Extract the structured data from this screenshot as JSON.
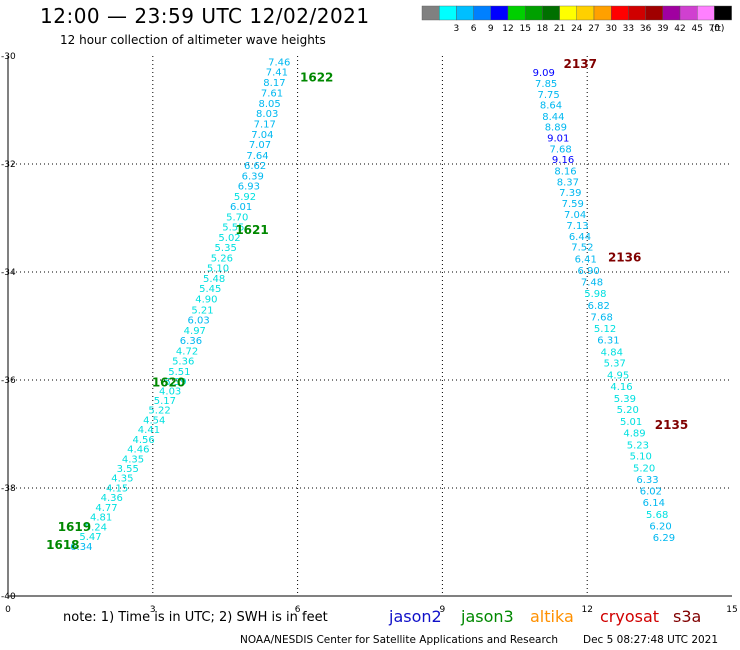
{
  "header": {
    "title": "12:00 — 23:59 UTC 12/02/2021",
    "subtitle": "12 hour collection of altimeter wave heights"
  },
  "note": "note: 1) Time is in UTC; 2) SWH is in feet",
  "footer": {
    "center": "NOAA/NESDIS Center for Satellite Applications and Research",
    "timestamp": "Dec  5 08:27:48 UTC 2021"
  },
  "satellites": [
    {
      "name": "jason2",
      "color": "#1010c8"
    },
    {
      "name": "jason3",
      "color": "#008800"
    },
    {
      "name": "altika",
      "color": "#ff9000"
    },
    {
      "name": "cryosat",
      "color": "#d00000"
    },
    {
      "name": "s3a",
      "color": "#800000"
    }
  ],
  "color_scale": {
    "unit": "(ft)",
    "bins": [
      {
        "label": "",
        "color": "#808080"
      },
      {
        "label": "3",
        "color": "#00ffff"
      },
      {
        "label": "6",
        "color": "#00bfff"
      },
      {
        "label": "9",
        "color": "#0080ff"
      },
      {
        "label": "12",
        "color": "#0000ff"
      },
      {
        "label": "15",
        "color": "#00d000"
      },
      {
        "label": "18",
        "color": "#00a000"
      },
      {
        "label": "21",
        "color": "#007000"
      },
      {
        "label": "24",
        "color": "#ffff00"
      },
      {
        "label": "27",
        "color": "#ffd000"
      },
      {
        "label": "30",
        "color": "#ffa000"
      },
      {
        "label": "33",
        "color": "#ff0000"
      },
      {
        "label": "36",
        "color": "#d00000"
      },
      {
        "label": "39",
        "color": "#a00000"
      },
      {
        "label": "42",
        "color": "#a000a0"
      },
      {
        "label": "45",
        "color": "#d040d0"
      },
      {
        "label": "70",
        "color": "#ff80ff"
      },
      {
        "label": "",
        "color": "#000000"
      }
    ]
  },
  "chart_data": {
    "type": "scatter",
    "xlim": [
      0,
      15
    ],
    "ylim": [
      -40,
      -30
    ],
    "xticks": [
      "0",
      "3",
      "6",
      "9",
      "12",
      "15"
    ],
    "yticks": [
      "-30",
      "-32",
      "-34",
      "-36",
      "-38",
      "-40"
    ],
    "grid": true,
    "tracks": [
      {
        "points": [
          {
            "x": 5.62,
            "y": -30.1,
            "v": "7.46"
          },
          {
            "x": 5.57,
            "y": -30.29,
            "v": "7.41"
          },
          {
            "x": 5.52,
            "y": -30.48,
            "v": "8.17"
          },
          {
            "x": 5.47,
            "y": -30.68,
            "v": "7.61"
          },
          {
            "x": 5.42,
            "y": -30.87,
            "v": "8.05"
          },
          {
            "x": 5.37,
            "y": -31.06,
            "v": "8.03"
          },
          {
            "x": 5.32,
            "y": -31.25,
            "v": "7.17"
          },
          {
            "x": 5.27,
            "y": -31.44,
            "v": "7.04"
          },
          {
            "x": 5.22,
            "y": -31.63,
            "v": "7.07"
          },
          {
            "x": 5.17,
            "y": -31.83,
            "v": "7.64"
          },
          {
            "x": 5.12,
            "y": -32.02,
            "v": "6.62"
          },
          {
            "x": 5.07,
            "y": -32.21,
            "v": "6.39"
          },
          {
            "x": 4.99,
            "y": -32.4,
            "v": "6.93"
          },
          {
            "x": 4.91,
            "y": -32.59,
            "v": "5.92"
          },
          {
            "x": 4.83,
            "y": -32.78,
            "v": "6.01"
          },
          {
            "x": 4.75,
            "y": -32.97,
            "v": "5.70"
          },
          {
            "x": 4.67,
            "y": -33.16,
            "v": "5.55"
          },
          {
            "x": 4.59,
            "y": -33.35,
            "v": "5.02"
          },
          {
            "x": 4.51,
            "y": -33.54,
            "v": "5.35"
          },
          {
            "x": 4.43,
            "y": -33.73,
            "v": "5.26"
          },
          {
            "x": 4.35,
            "y": -33.92,
            "v": "5.10"
          },
          {
            "x": 4.27,
            "y": -34.11,
            "v": "5.48"
          },
          {
            "x": 4.19,
            "y": -34.3,
            "v": "5.45"
          },
          {
            "x": 4.11,
            "y": -34.49,
            "v": "4.90"
          },
          {
            "x": 4.03,
            "y": -34.69,
            "v": "5.21"
          },
          {
            "x": 3.95,
            "y": -34.88,
            "v": "6.03"
          },
          {
            "x": 3.87,
            "y": -35.07,
            "v": "4.97"
          },
          {
            "x": 3.79,
            "y": -35.26,
            "v": "6.36"
          },
          {
            "x": 3.71,
            "y": -35.45,
            "v": "4.72"
          },
          {
            "x": 3.63,
            "y": -35.64,
            "v": "5.36"
          },
          {
            "x": 3.55,
            "y": -35.83,
            "v": "5.51"
          },
          {
            "x": 3.47,
            "y": -36.02,
            "v": "5.39"
          },
          {
            "x": 3.36,
            "y": -36.19,
            "v": "4.03"
          },
          {
            "x": 3.25,
            "y": -36.37,
            "v": "5.17"
          },
          {
            "x": 3.14,
            "y": -36.55,
            "v": "5.22"
          },
          {
            "x": 3.03,
            "y": -36.73,
            "v": "4.54"
          },
          {
            "x": 2.92,
            "y": -36.91,
            "v": "4.41"
          },
          {
            "x": 2.81,
            "y": -37.09,
            "v": "4.56"
          },
          {
            "x": 2.7,
            "y": -37.27,
            "v": "4.46"
          },
          {
            "x": 2.59,
            "y": -37.45,
            "v": "4.35"
          },
          {
            "x": 2.48,
            "y": -37.63,
            "v": "3.55"
          },
          {
            "x": 2.37,
            "y": -37.81,
            "v": "4.35"
          },
          {
            "x": 2.26,
            "y": -37.99,
            "v": "4.15"
          },
          {
            "x": 2.15,
            "y": -38.17,
            "v": "4.36"
          },
          {
            "x": 2.04,
            "y": -38.35,
            "v": "4.77"
          },
          {
            "x": 1.93,
            "y": -38.53,
            "v": "4.81"
          },
          {
            "x": 1.82,
            "y": -38.71,
            "v": "5.24"
          },
          {
            "x": 1.71,
            "y": -38.89,
            "v": "5.47"
          },
          {
            "x": 1.52,
            "y": -39.07,
            "v": "6.34"
          }
        ],
        "pass_labels": [
          {
            "x": 6.05,
            "y": -30.4,
            "text": "1622",
            "sat": "jason3"
          },
          {
            "x": 4.71,
            "y": -33.22,
            "text": "1621",
            "sat": "jason3"
          },
          {
            "x": 2.98,
            "y": -36.05,
            "text": "1620",
            "sat": "jason3"
          },
          {
            "x": 1.03,
            "y": -38.72,
            "text": "1619",
            "sat": "jason3"
          },
          {
            "x": 0.79,
            "y": -39.06,
            "text": "1618",
            "sat": "jason3"
          }
        ]
      },
      {
        "points": [
          {
            "x": 11.1,
            "y": -30.3,
            "v": "9.09"
          },
          {
            "x": 11.15,
            "y": -30.5,
            "v": "7.85"
          },
          {
            "x": 11.2,
            "y": -30.7,
            "v": "7.75"
          },
          {
            "x": 11.25,
            "y": -30.9,
            "v": "8.64"
          },
          {
            "x": 11.3,
            "y": -31.11,
            "v": "8.44"
          },
          {
            "x": 11.35,
            "y": -31.31,
            "v": "8.89"
          },
          {
            "x": 11.4,
            "y": -31.51,
            "v": "9.01"
          },
          {
            "x": 11.45,
            "y": -31.71,
            "v": "7.68"
          },
          {
            "x": 11.5,
            "y": -31.91,
            "v": "9.16"
          },
          {
            "x": 11.55,
            "y": -32.12,
            "v": "8.16"
          },
          {
            "x": 11.6,
            "y": -32.32,
            "v": "8.37"
          },
          {
            "x": 11.65,
            "y": -32.52,
            "v": "7.39"
          },
          {
            "x": 11.7,
            "y": -32.72,
            "v": "7.59"
          },
          {
            "x": 11.75,
            "y": -32.93,
            "v": "7.04"
          },
          {
            "x": 11.8,
            "y": -33.13,
            "v": "7.13"
          },
          {
            "x": 11.85,
            "y": -33.33,
            "v": "6.44"
          },
          {
            "x": 11.9,
            "y": -33.53,
            "v": "7.52"
          },
          {
            "x": 11.97,
            "y": -33.75,
            "v": "6.41"
          },
          {
            "x": 12.03,
            "y": -33.96,
            "v": "6.90"
          },
          {
            "x": 12.1,
            "y": -34.18,
            "v": "7.48"
          },
          {
            "x": 12.17,
            "y": -34.39,
            "v": "5.98"
          },
          {
            "x": 12.24,
            "y": -34.61,
            "v": "6.82"
          },
          {
            "x": 12.3,
            "y": -34.82,
            "v": "7.68"
          },
          {
            "x": 12.37,
            "y": -35.04,
            "v": "5.12"
          },
          {
            "x": 12.44,
            "y": -35.25,
            "v": "6.31"
          },
          {
            "x": 12.51,
            "y": -35.47,
            "v": "4.84"
          },
          {
            "x": 12.57,
            "y": -35.68,
            "v": "5.37"
          },
          {
            "x": 12.64,
            "y": -35.9,
            "v": "4.95"
          },
          {
            "x": 12.71,
            "y": -36.11,
            "v": "4.16"
          },
          {
            "x": 12.78,
            "y": -36.33,
            "v": "5.39"
          },
          {
            "x": 12.84,
            "y": -36.54,
            "v": "5.20"
          },
          {
            "x": 12.91,
            "y": -36.76,
            "v": "5.01"
          },
          {
            "x": 12.98,
            "y": -36.97,
            "v": "4.89"
          },
          {
            "x": 13.05,
            "y": -37.19,
            "v": "5.23"
          },
          {
            "x": 13.11,
            "y": -37.4,
            "v": "5.10"
          },
          {
            "x": 13.18,
            "y": -37.62,
            "v": "5.20"
          },
          {
            "x": 13.25,
            "y": -37.83,
            "v": "6.33"
          },
          {
            "x": 13.32,
            "y": -38.05,
            "v": "6.02"
          },
          {
            "x": 13.38,
            "y": -38.26,
            "v": "6.14"
          },
          {
            "x": 13.45,
            "y": -38.48,
            "v": "5.68"
          },
          {
            "x": 13.52,
            "y": -38.69,
            "v": "6.20"
          },
          {
            "x": 13.59,
            "y": -38.91,
            "v": "6.29"
          }
        ],
        "pass_labels": [
          {
            "x": 11.51,
            "y": -30.15,
            "text": "2137",
            "sat": "cryosat"
          },
          {
            "x": 12.43,
            "y": -33.73,
            "text": "2136",
            "sat": "cryosat"
          },
          {
            "x": 13.4,
            "y": -36.83,
            "text": "2135",
            "sat": "cryosat"
          }
        ]
      }
    ]
  }
}
